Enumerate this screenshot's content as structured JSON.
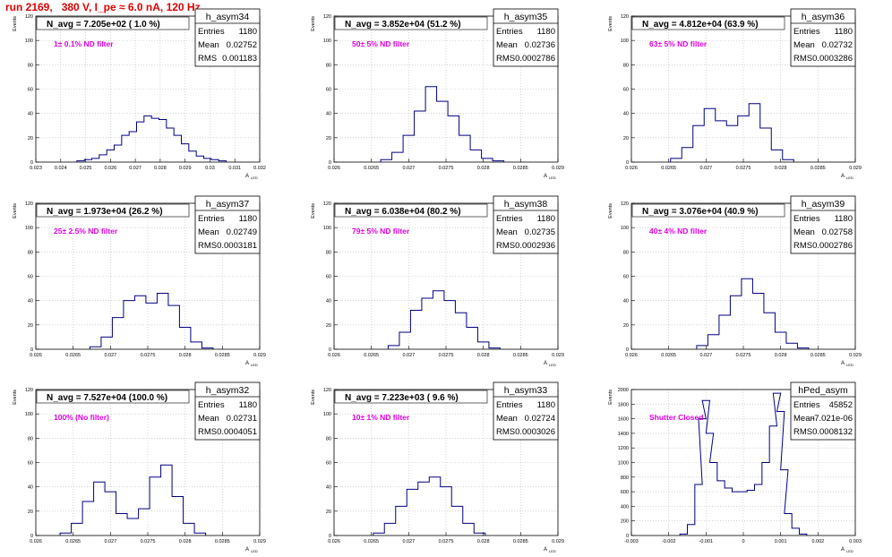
{
  "header": {
    "run_title": "run 2169,   380 V, I_pe ≈ 6.0 nA, 120 Hz"
  },
  "panel_labels": {
    "y_axis": "Events",
    "x_axis": "A",
    "x_axis_sub": "LED",
    "stats_entries": "Entries",
    "stats_mean": "Mean",
    "stats_rms": "RMS"
  },
  "colors": {
    "histogram_line": "#000080",
    "grid": "#bbbbbb",
    "title_red": "#e00000",
    "label_magenta": "#e000e0"
  },
  "chart_data": [
    {
      "type": "histogram",
      "name": "h_asym34",
      "title": "N_avg = 7.205e+02 ( 1.0 %)",
      "label": "1± 0.1% ND filter",
      "entries": "1180",
      "mean": "0.02752",
      "rms": "0.001183",
      "xlim": [
        0.023,
        0.032
      ],
      "ylim": [
        0,
        120
      ],
      "xticks": [
        "0.023",
        "0.024",
        "0.025",
        "0.026",
        "0.027",
        "0.028",
        "0.029",
        "0.03",
        "0.031",
        "0.032"
      ],
      "yticks": [
        "0",
        "20",
        "40",
        "60",
        "80",
        "100",
        "120"
      ],
      "grid": true,
      "x": [
        0.0248,
        0.0251,
        0.0254,
        0.0257,
        0.026,
        0.0263,
        0.0266,
        0.0269,
        0.0272,
        0.0275,
        0.0278,
        0.0281,
        0.0284,
        0.0287,
        0.029,
        0.0293,
        0.0296,
        0.0299,
        0.0302,
        0.0305
      ],
      "values": [
        1,
        2,
        3,
        6,
        10,
        14,
        22,
        25,
        33,
        38,
        36,
        35,
        28,
        22,
        15,
        9,
        5,
        3,
        2,
        1
      ]
    },
    {
      "type": "histogram",
      "name": "h_asym35",
      "title": "N_avg = 3.852e+04 (51.2 %)",
      "label": "50± 5% ND filter",
      "entries": "1180",
      "mean": "0.02736",
      "rms": "0.0002786",
      "xlim": [
        0.026,
        0.029
      ],
      "ylim": [
        0,
        120
      ],
      "xticks": [
        "0.026",
        "0.0265",
        "0.027",
        "0.0275",
        "0.028",
        "0.0285",
        "0.029"
      ],
      "yticks": [
        "0",
        "20",
        "40",
        "60",
        "80",
        "100",
        "120"
      ],
      "grid": true,
      "x": [
        0.0267,
        0.02685,
        0.027,
        0.02715,
        0.0273,
        0.02745,
        0.0276,
        0.02775,
        0.0279,
        0.02805,
        0.0282
      ],
      "values": [
        2,
        8,
        22,
        42,
        62,
        50,
        38,
        22,
        10,
        3,
        1
      ]
    },
    {
      "type": "histogram",
      "name": "h_asym36",
      "title": "N_avg = 4.812e+04 (63.9 %)",
      "label": "63± 5% ND filter",
      "entries": "1180",
      "mean": "0.02732",
      "rms": "0.0003286",
      "xlim": [
        0.026,
        0.029
      ],
      "ylim": [
        0,
        120
      ],
      "xticks": [
        "0.026",
        "0.0265",
        "0.027",
        "0.0275",
        "0.028",
        "0.0285",
        "0.029"
      ],
      "yticks": [
        "0",
        "20",
        "40",
        "60",
        "80",
        "100",
        "120"
      ],
      "grid": true,
      "x": [
        0.0266,
        0.02675,
        0.0269,
        0.02705,
        0.0272,
        0.02735,
        0.0275,
        0.02765,
        0.0278,
        0.02795,
        0.0281
      ],
      "values": [
        3,
        12,
        30,
        44,
        34,
        30,
        38,
        48,
        28,
        10,
        2
      ]
    },
    {
      "type": "histogram",
      "name": "h_asym37",
      "title": "N_avg = 1.973e+04 (26.2 %)",
      "label": "25± 2.5% ND filter",
      "entries": "1180",
      "mean": "0.02749",
      "rms": "0.0003181",
      "xlim": [
        0.026,
        0.029
      ],
      "ylim": [
        0,
        120
      ],
      "xticks": [
        "0.026",
        "0.0265",
        "0.027",
        "0.0275",
        "0.028",
        "0.0285",
        "0.029"
      ],
      "yticks": [
        "0",
        "20",
        "40",
        "60",
        "80",
        "100",
        "120"
      ],
      "grid": true,
      "x": [
        0.0268,
        0.02695,
        0.0271,
        0.02725,
        0.0274,
        0.02755,
        0.0277,
        0.02785,
        0.028,
        0.02815,
        0.0283
      ],
      "values": [
        2,
        10,
        26,
        40,
        44,
        38,
        46,
        36,
        18,
        6,
        1
      ]
    },
    {
      "type": "histogram",
      "name": "h_asym38",
      "title": "N_avg = 6.038e+04 (80.2 %)",
      "label": "79± 5% ND filter",
      "entries": "1180",
      "mean": "0.02735",
      "rms": "0.0002936",
      "xlim": [
        0.026,
        0.029
      ],
      "ylim": [
        0,
        120
      ],
      "xticks": [
        "0.026",
        "0.0265",
        "0.027",
        "0.0275",
        "0.028",
        "0.0285",
        "0.029"
      ],
      "yticks": [
        "0",
        "20",
        "40",
        "60",
        "80",
        "100",
        "120"
      ],
      "grid": true,
      "x": [
        0.0268,
        0.02695,
        0.0271,
        0.02725,
        0.0274,
        0.02755,
        0.0277,
        0.02785,
        0.028,
        0.02815
      ],
      "values": [
        3,
        14,
        32,
        42,
        48,
        40,
        30,
        18,
        6,
        1
      ]
    },
    {
      "type": "histogram",
      "name": "h_asym39",
      "title": "N_avg = 3.076e+04 (40.9 %)",
      "label": "40± 4% ND filter",
      "entries": "1180",
      "mean": "0.02758",
      "rms": "0.0002786",
      "xlim": [
        0.026,
        0.029
      ],
      "ylim": [
        0,
        120
      ],
      "xticks": [
        "0.026",
        "0.0265",
        "0.027",
        "0.0275",
        "0.028",
        "0.0285",
        "0.029"
      ],
      "yticks": [
        "0",
        "20",
        "40",
        "60",
        "80",
        "100",
        "120"
      ],
      "grid": true,
      "x": [
        0.02695,
        0.0271,
        0.02725,
        0.0274,
        0.02755,
        0.0277,
        0.02785,
        0.028,
        0.02815,
        0.0283
      ],
      "values": [
        3,
        12,
        28,
        44,
        58,
        46,
        30,
        14,
        5,
        1
      ]
    },
    {
      "type": "histogram",
      "name": "h_asym32",
      "title": "N_avg = 7.527e+04 (100.0 %)",
      "label": "100% (No filter)",
      "entries": "1180",
      "mean": "0.02731",
      "rms": "0.0004051",
      "xlim": [
        0.026,
        0.029
      ],
      "ylim": [
        0,
        120
      ],
      "xticks": [
        "0.026",
        "0.0265",
        "0.027",
        "0.0275",
        "0.028",
        "0.0285",
        "0.029"
      ],
      "yticks": [
        "0",
        "20",
        "40",
        "60",
        "80",
        "100",
        "120"
      ],
      "grid": true,
      "x": [
        0.0264,
        0.02655,
        0.0267,
        0.02685,
        0.027,
        0.02715,
        0.0273,
        0.02745,
        0.0276,
        0.02775,
        0.0279,
        0.02805,
        0.0282
      ],
      "values": [
        2,
        10,
        28,
        44,
        36,
        18,
        14,
        22,
        48,
        58,
        32,
        10,
        2
      ]
    },
    {
      "type": "histogram",
      "name": "h_asym33",
      "title": "N_avg = 7.223e+03 ( 9.6 %)",
      "label": "10± 1% ND filter",
      "entries": "1180",
      "mean": "0.02724",
      "rms": "0.0003026",
      "xlim": [
        0.026,
        0.029
      ],
      "ylim": [
        0,
        120
      ],
      "xticks": [
        "0.026",
        "0.0265",
        "0.027",
        "0.0275",
        "0.028",
        "0.0285",
        "0.029"
      ],
      "yticks": [
        "0",
        "20",
        "40",
        "60",
        "80",
        "100",
        "120"
      ],
      "grid": true,
      "x": [
        0.0266,
        0.02675,
        0.0269,
        0.02705,
        0.0272,
        0.02735,
        0.0275,
        0.02765,
        0.0278,
        0.02795
      ],
      "values": [
        2,
        10,
        24,
        38,
        44,
        48,
        40,
        24,
        10,
        2
      ]
    },
    {
      "type": "histogram",
      "name": "hPed_asym",
      "title": "",
      "label": "Shutter Closed",
      "entries": "45852",
      "mean": "-7.021e-06",
      "rms": "0.0008132",
      "xlim": [
        -0.003,
        0.003
      ],
      "ylim": [
        0,
        2000
      ],
      "xticks": [
        "-0.003",
        "-0.002",
        "-0.001",
        "0",
        "0.001",
        "0.002",
        "0.003"
      ],
      "yticks": [
        "0",
        "200",
        "400",
        "600",
        "800",
        "1000",
        "1200",
        "1400",
        "1600",
        "1800",
        "2000"
      ],
      "grid": true,
      "x": [
        -0.0016,
        -0.0014,
        -0.0012,
        -0.0011,
        -0.001,
        -0.0009,
        -0.0008,
        -0.0006,
        -0.0004,
        -0.0002,
        0,
        0.0002,
        0.0004,
        0.0006,
        0.0008,
        0.0009,
        0.001,
        0.0011,
        0.0012,
        0.0014,
        0.0016
      ],
      "values": [
        20,
        150,
        700,
        1600,
        1850,
        1400,
        1000,
        750,
        650,
        600,
        600,
        620,
        700,
        1000,
        1500,
        1950,
        1700,
        900,
        300,
        100,
        20
      ]
    }
  ]
}
